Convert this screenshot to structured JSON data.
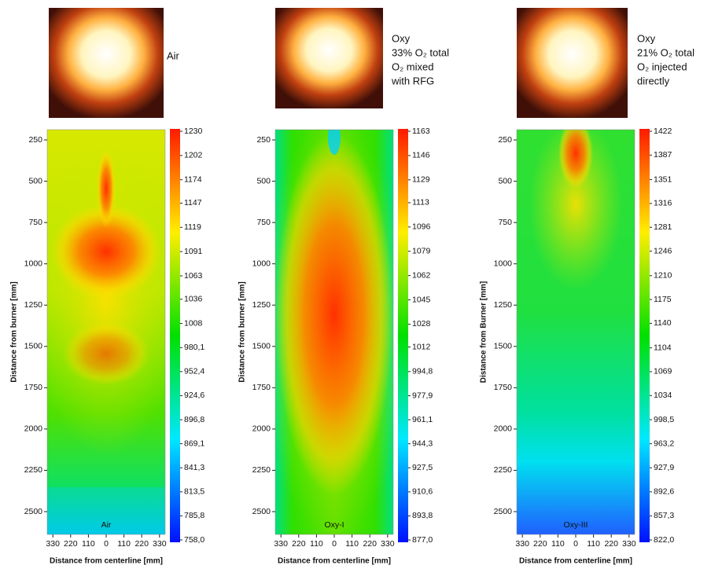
{
  "chart_data": [
    {
      "type": "heatmap",
      "label": "Air",
      "annotations": [
        "Air"
      ],
      "ylabel": "Distance from burner [mm]",
      "xlabel": "Distance from centerline [mm]",
      "xlim": [
        -365,
        365
      ],
      "xticks": [
        {
          "value": -330,
          "label": "330"
        },
        {
          "value": -220,
          "label": "220"
        },
        {
          "value": -110,
          "label": "110"
        },
        0,
        {
          "value": 110,
          "label": "110"
        },
        {
          "value": 220,
          "label": "220"
        },
        330
      ],
      "ylim": [
        188,
        2638
      ],
      "yticks": [
        250,
        500,
        750,
        1000,
        1250,
        1500,
        1750,
        2000,
        2250,
        2500
      ],
      "colormap": [
        "#ff1a00",
        "#ffee00",
        "#00e000",
        "#00e8ff",
        "#0010ff"
      ],
      "cticks": [
        1230,
        1202,
        1174,
        1147,
        1119,
        1091,
        1063,
        1036,
        1008,
        {
          "value": 980.1,
          "label": "980,1"
        },
        {
          "value": 952.4,
          "label": "952,4"
        },
        {
          "value": 924.6,
          "label": "924,6"
        },
        {
          "value": 896.8,
          "label": "896,8"
        },
        {
          "value": 869.1,
          "label": "869,1"
        },
        {
          "value": 841.3,
          "label": "841,3"
        },
        {
          "value": 813.5,
          "label": "813,5"
        },
        {
          "value": 785.8,
          "label": "785,8"
        },
        {
          "value": 758.0,
          "label": "758,0"
        }
      ]
    },
    {
      "type": "heatmap",
      "label": "Oxy-I",
      "annotations": [
        "Oxy",
        "33% O₂ total",
        "O₂ mixed",
        "with RFG"
      ],
      "ylabel": "Distance from burner [mm]",
      "xlabel": "Distance from centerline [mm]",
      "xlim": [
        -365,
        365
      ],
      "xticks": [
        {
          "value": -330,
          "label": "330"
        },
        {
          "value": -220,
          "label": "220"
        },
        {
          "value": -110,
          "label": "110"
        },
        0,
        {
          "value": 110,
          "label": "110"
        },
        {
          "value": 220,
          "label": "220"
        },
        330
      ],
      "ylim": [
        188,
        2638
      ],
      "yticks": [
        250,
        500,
        750,
        1000,
        1250,
        1500,
        1750,
        2000,
        2250,
        2500
      ],
      "colormap": [
        "#ff1a00",
        "#ffee00",
        "#00e000",
        "#00e8ff",
        "#0010ff"
      ],
      "cticks": [
        1163,
        1146,
        1129,
        1113,
        1096,
        1079,
        1062,
        1045,
        1028,
        1012,
        {
          "value": 994.8,
          "label": "994,8"
        },
        {
          "value": 977.9,
          "label": "977,9"
        },
        {
          "value": 961.1,
          "label": "961,1"
        },
        {
          "value": 944.3,
          "label": "944,3"
        },
        {
          "value": 927.5,
          "label": "927,5"
        },
        {
          "value": 910.6,
          "label": "910,6"
        },
        {
          "value": 893.8,
          "label": "893,8"
        },
        {
          "value": 877.0,
          "label": "877,0"
        }
      ]
    },
    {
      "type": "heatmap",
      "label": "Oxy-III",
      "annotations": [
        "Oxy",
        "21% O₂ total",
        "O₂ injected",
        "directly"
      ],
      "ylabel": "Distance from Burner [mm]",
      "xlabel": "Distance from centerline [mm]",
      "xlim": [
        -365,
        365
      ],
      "xticks": [
        {
          "value": -330,
          "label": "330"
        },
        {
          "value": -220,
          "label": "220"
        },
        {
          "value": -110,
          "label": "110"
        },
        0,
        {
          "value": 110,
          "label": "110"
        },
        {
          "value": 220,
          "label": "220"
        },
        330
      ],
      "ylim": [
        188,
        2638
      ],
      "yticks": [
        250,
        500,
        750,
        1000,
        1250,
        1500,
        1750,
        2000,
        2250,
        2500
      ],
      "colormap": [
        "#ff1a00",
        "#ffee00",
        "#00e000",
        "#00e8ff",
        "#0010ff"
      ],
      "cticks": [
        1422,
        1387,
        1351,
        1316,
        1281,
        1246,
        1210,
        1175,
        1140,
        1104,
        1069,
        1034,
        {
          "value": 998.5,
          "label": "998,5"
        },
        {
          "value": 963.2,
          "label": "963,2"
        },
        {
          "value": 927.9,
          "label": "927,9"
        },
        {
          "value": 892.6,
          "label": "892,6"
        },
        {
          "value": 857.3,
          "label": "857,3"
        },
        {
          "value": 822.0,
          "label": "822,0"
        }
      ]
    }
  ]
}
